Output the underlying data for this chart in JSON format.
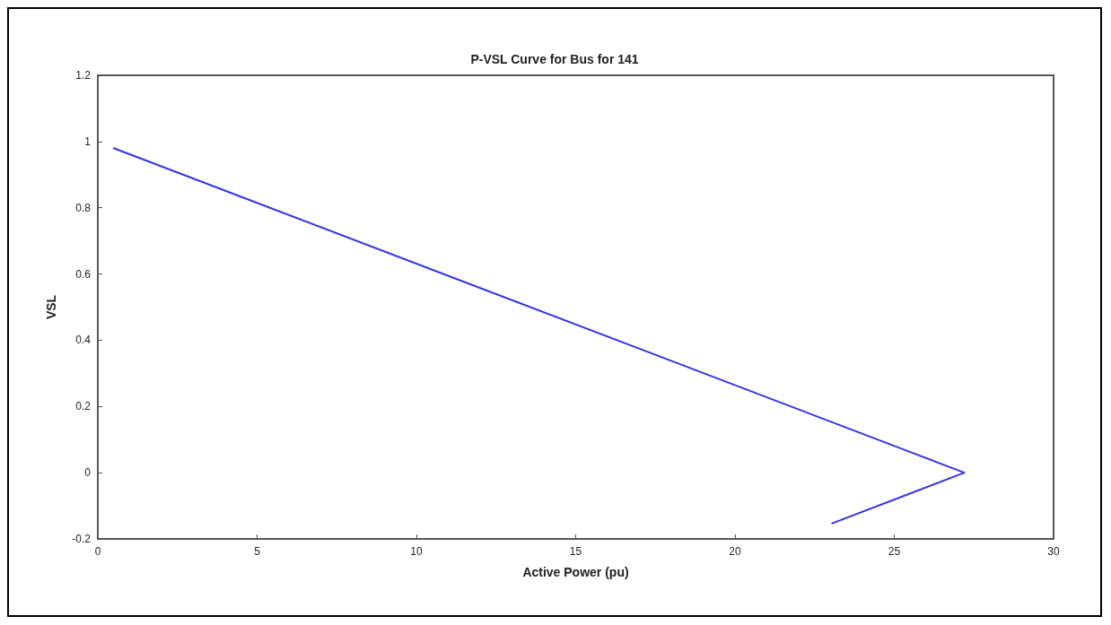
{
  "chart_data": {
    "type": "line",
    "title": "P-VSL Curve for Bus for 141",
    "xlabel": "Active Power (pu)",
    "ylabel": "VSL",
    "x": [
      0.5,
      27.2,
      23.05
    ],
    "series": [
      {
        "color": "#3333ee",
        "values": [
          0.98,
          0,
          -0.153
        ]
      }
    ],
    "xlim": [
      0,
      30
    ],
    "xticks": [
      0,
      5,
      10,
      15,
      20,
      25,
      30
    ],
    "ylim": [
      -0.2,
      1.2
    ],
    "yticks": [
      -0.2,
      0,
      0.2,
      0.4,
      0.6,
      0.8,
      1,
      1.2
    ],
    "grid": false,
    "marker": "none",
    "line_style": "solid"
  }
}
